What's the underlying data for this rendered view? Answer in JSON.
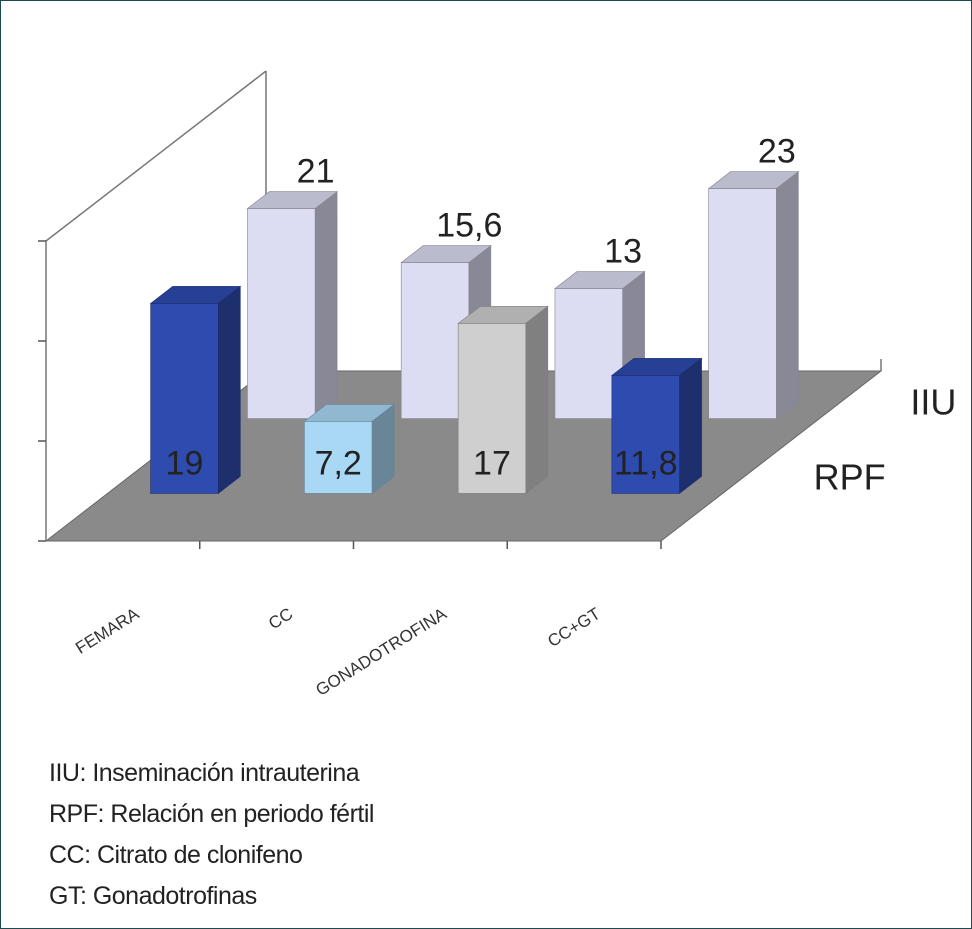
{
  "chart_data": {
    "type": "bar3d",
    "categories": [
      "FEMARA",
      "CC",
      "GONADOTROFINA",
      "CC+GT"
    ],
    "series": [
      {
        "name": "RPF",
        "colors": [
          "#2e4bb0",
          "#a9d8f5",
          "#cfcfcf",
          "#2e4bb0"
        ],
        "values": [
          19,
          7.2,
          17,
          11.8
        ],
        "value_labels": [
          "19",
          "7,2",
          "17",
          "11,8"
        ]
      },
      {
        "name": "IIU",
        "color": "#dcdcf2",
        "values": [
          21,
          15.6,
          13,
          23
        ],
        "value_labels": [
          "21",
          "15,6",
          "13",
          "23"
        ]
      }
    ],
    "ylim": [
      0,
      30
    ],
    "yticks": [
      0,
      10,
      20,
      30
    ],
    "notes": [
      "IIU: Inseminación intrauterina",
      "RPF: Relación en periodo fértil",
      "CC: Citrato de clonifeno",
      "GT: Gonadotrofinas"
    ]
  }
}
